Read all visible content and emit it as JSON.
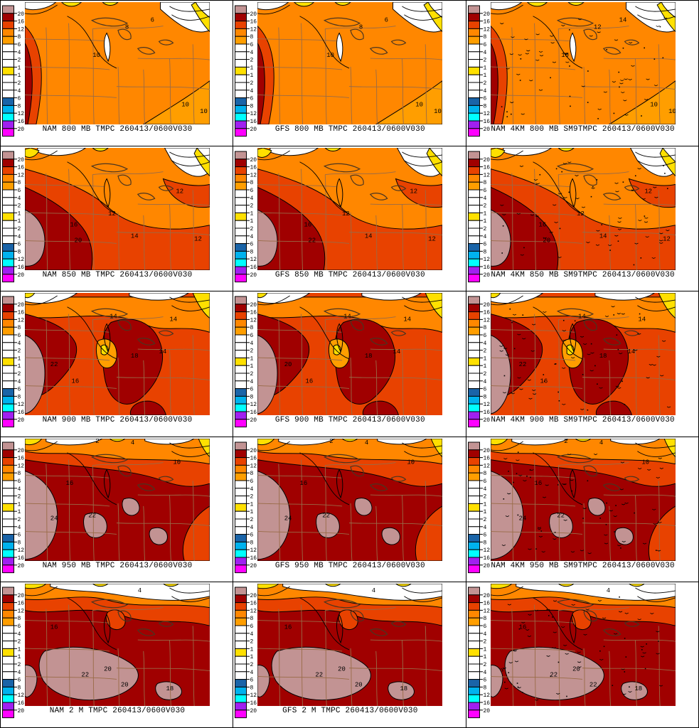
{
  "figure": {
    "description": "Model temperature (TMPC) contour comparison grid",
    "columns": [
      "NAM",
      "GFS",
      "NAM 4KM"
    ],
    "levels": [
      "800 MB",
      "850 MB",
      "900 MB",
      "950 MB",
      "2 M"
    ]
  },
  "colorbar": {
    "tick_labels": [
      "20",
      "16",
      "12",
      "8",
      "6",
      "4",
      "2",
      "1",
      "1",
      "2",
      "4",
      "6",
      "8",
      "12",
      "16",
      "20"
    ],
    "box_colors": [
      "#C29393",
      "#A00000",
      "#E84200",
      "#FF8700",
      "#FF9E00",
      "#FFFFFF",
      "#FFFFFF",
      "#FFFFFF",
      "#FFE000",
      "#FFFFFF",
      "#FFFFFF",
      "#FFFFFF",
      "#1A64A8",
      "#00B2EE",
      "#00FFFF",
      "#A020F0",
      "#FF00FF"
    ]
  },
  "colors": {
    "mauve": "#C29393",
    "darkRed": "#A00000",
    "orangeRed": "#E84200",
    "orange": "#FF8700",
    "lightOrange": "#FF9E00",
    "yellow": "#FFE000",
    "white": "#FFFFFF",
    "darkBlue": "#1A64A8",
    "blue": "#00B2EE",
    "cyan": "#00FFFF",
    "purple": "#A020F0",
    "magenta": "#FF00FF",
    "stateBorder": "#996B47",
    "contour": "#000000"
  },
  "panels": [
    {
      "caption": "NAM 800 MB TMPC 260413/0600V030",
      "row": 0,
      "col": 0,
      "contour_labels": [
        "10",
        "8",
        "6",
        "10",
        "10"
      ]
    },
    {
      "caption": "GFS 800 MB TMPC 260413/0600V030",
      "row": 0,
      "col": 1,
      "contour_labels": [
        "10",
        "8",
        "6",
        "10",
        "10"
      ]
    },
    {
      "caption": "NAM 4KM 800 MB SM9TMPC 260413/0600V030",
      "row": 0,
      "col": 2,
      "contour_labels": [
        "10",
        "12",
        "14",
        "10",
        "10"
      ]
    },
    {
      "caption": "NAM 850 MB TMPC 260413/0600V030",
      "row": 1,
      "col": 0,
      "contour_labels": [
        "12",
        "16",
        "20",
        "12",
        "12",
        "14"
      ]
    },
    {
      "caption": "GFS 850 MB TMPC 260413/0600V030",
      "row": 1,
      "col": 1,
      "contour_labels": [
        "12",
        "16",
        "22",
        "12",
        "12",
        "14"
      ]
    },
    {
      "caption": "NAM 4KM 850 MB SM9TMPC 260413/0600V030",
      "row": 1,
      "col": 2,
      "contour_labels": [
        "12",
        "16",
        "20",
        "12",
        "12",
        "14"
      ]
    },
    {
      "caption": "NAM 900 MB TMPC 260413/0600V030",
      "row": 2,
      "col": 0,
      "contour_labels": [
        "18",
        "22",
        "16",
        "14",
        "14",
        "14"
      ]
    },
    {
      "caption": "GFS 900 MB TMPC 260413/0600V030",
      "row": 2,
      "col": 1,
      "contour_labels": [
        "18",
        "20",
        "16",
        "14",
        "14",
        "14"
      ]
    },
    {
      "caption": "NAM 4KM 900 MB SM9TMPC 260413/0600V030",
      "row": 2,
      "col": 2,
      "contour_labels": [
        "18",
        "22",
        "16",
        "14",
        "14",
        "14"
      ]
    },
    {
      "caption": "NAM 950 MB TMPC 260413/0600V030",
      "row": 3,
      "col": 0,
      "contour_labels": [
        "24",
        "22",
        "16",
        "10",
        "2",
        "4"
      ]
    },
    {
      "caption": "GFS 950 MB TMPC 260413/0600V030",
      "row": 3,
      "col": 1,
      "contour_labels": [
        "24",
        "22",
        "16",
        "10",
        "2",
        "4"
      ]
    },
    {
      "caption": "NAM 4KM 950 MB SM9TMPC 260413/0600V030",
      "row": 3,
      "col": 2,
      "contour_labels": [
        "24",
        "22",
        "16",
        "10",
        "2",
        "4"
      ]
    },
    {
      "caption": "NAM 2 M TMPC 260413/0600V030",
      "row": 4,
      "col": 0,
      "contour_labels": [
        "20",
        "20",
        "22",
        "18",
        "4",
        "16"
      ]
    },
    {
      "caption": "GFS 2 M TMPC 260413/0600V030",
      "row": 4,
      "col": 1,
      "contour_labels": [
        "20",
        "20",
        "22",
        "18",
        "4",
        "16"
      ]
    },
    {
      "caption": "",
      "row": 4,
      "col": 2,
      "contour_labels": [
        "20",
        "22",
        "22",
        "18",
        "4",
        "16"
      ]
    }
  ]
}
